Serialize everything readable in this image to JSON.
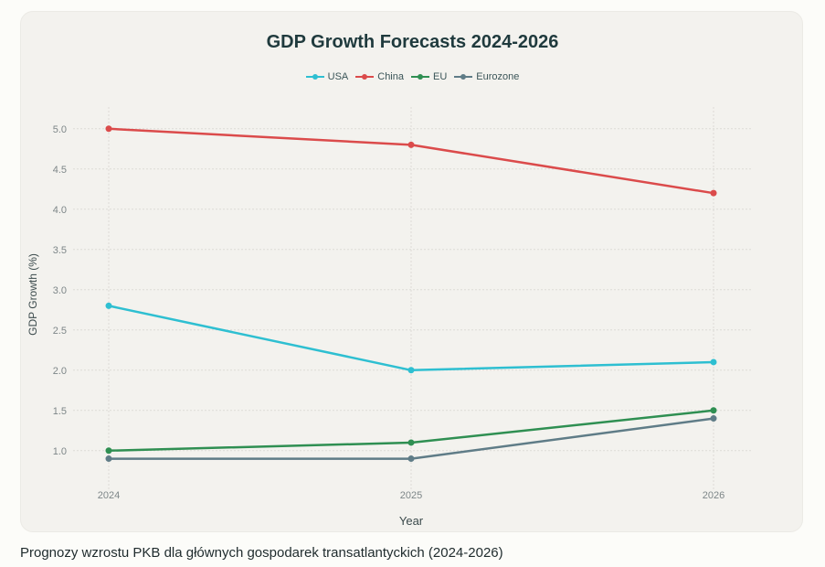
{
  "caption": "Prognozy wzrostu PKB dla głównych gospodarek transatlantyckich (2024-2026)",
  "chart_data": {
    "type": "line",
    "title": "GDP Growth Forecasts 2024-2026",
    "xlabel": "Year",
    "ylabel": "GDP Growth (%)",
    "x": [
      "2024",
      "2025",
      "2026"
    ],
    "ylim": [
      0.52,
      5.27
    ],
    "yticks": [
      "1.0",
      "1.5",
      "2.0",
      "2.5",
      "3.0",
      "3.5",
      "4.0",
      "4.5",
      "5.0"
    ],
    "grid": true,
    "legend_position": "top-center",
    "series": [
      {
        "name": "USA",
        "color": "#2ebfd1",
        "values": [
          2.8,
          2.0,
          2.1
        ]
      },
      {
        "name": "China",
        "color": "#db4b4b",
        "values": [
          5.0,
          4.8,
          4.2
        ]
      },
      {
        "name": "EU",
        "color": "#2f8f52",
        "values": [
          1.0,
          1.1,
          1.5
        ]
      },
      {
        "name": "Eurozone",
        "color": "#5f7c87",
        "values": [
          0.9,
          0.9,
          1.4
        ]
      }
    ]
  }
}
